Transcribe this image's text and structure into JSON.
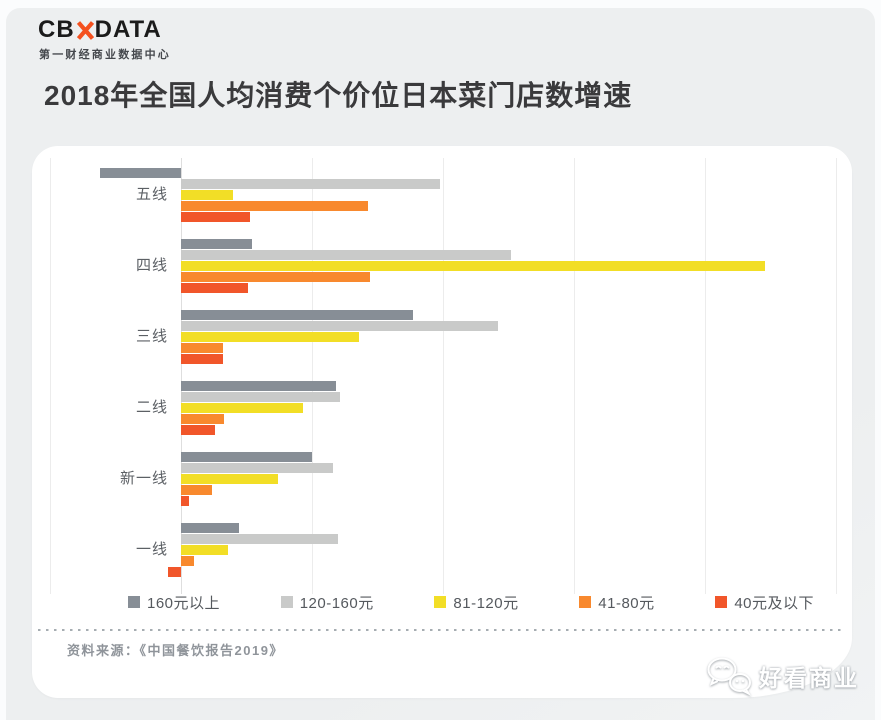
{
  "logo": {
    "prefix": "CB",
    "suffix": "DATA",
    "subtitle": "第一财经商业数据中心",
    "accent_color": "#f4501e"
  },
  "title": "2018年全国人均消费个价位日本菜门店数增速",
  "source_note": "资料来源：《中国餐饮报告2019》",
  "watermark": {
    "label": "好看商业"
  },
  "colors": {
    "panel_background": "#edeff0",
    "card_background": "#ffffff",
    "gridline": "#ececec",
    "title_text": "#3a3a3c"
  },
  "chart_data": {
    "type": "bar",
    "orientation": "horizontal",
    "title": "2018年全国人均消费个价位日本菜门店数增速",
    "categories": [
      "五线",
      "四线",
      "三线",
      "二线",
      "新一线",
      "一线"
    ],
    "series": [
      {
        "name": "160元以上",
        "color": "#878e96",
        "values": [
          -0.62,
          0.54,
          1.77,
          1.18,
          1.0,
          0.44
        ]
      },
      {
        "name": "120-160元",
        "color": "#c9cac9",
        "values": [
          1.98,
          2.52,
          2.42,
          1.21,
          1.16,
          1.2
        ]
      },
      {
        "name": "81-120元",
        "color": "#f2de26",
        "values": [
          0.4,
          4.46,
          1.36,
          0.93,
          0.74,
          0.36
        ]
      },
      {
        "name": "41-80元",
        "color": "#f8892e",
        "values": [
          1.43,
          1.44,
          0.32,
          0.33,
          0.24,
          0.1
        ]
      },
      {
        "name": "40元及以下",
        "color": "#f1562a",
        "values": [
          0.53,
          0.51,
          0.32,
          0.26,
          0.06,
          -0.1
        ]
      }
    ],
    "xlim": [
      -1,
      5
    ],
    "gridline_step": 1,
    "grid": true,
    "value_axis_labels_visible": false,
    "legend_position": "bottom-inside"
  }
}
